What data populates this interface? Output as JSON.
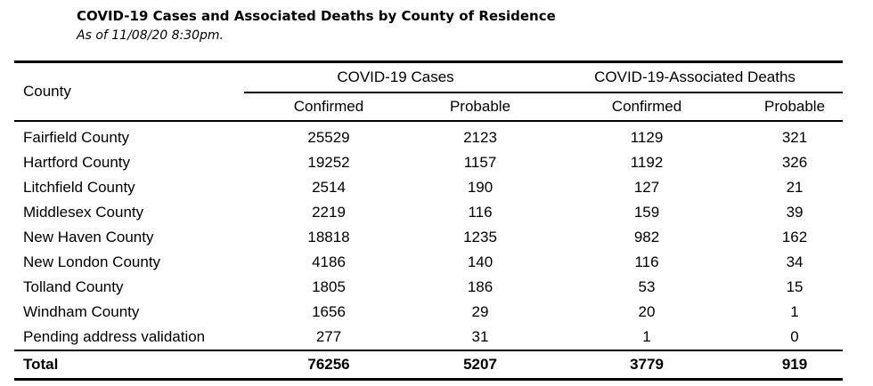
{
  "title": "COVID-19 Cases and Associated Deaths by County of Residence",
  "subtitle": "As of 11/08/20 8:30pm.",
  "table": {
    "county_header": "County",
    "groups": [
      "COVID-19 Cases",
      "COVID-19-Associated Deaths"
    ],
    "subheaders": [
      "Confirmed",
      "Probable",
      "Confirmed",
      "Probable"
    ],
    "rows": [
      {
        "county": "Fairfield County",
        "cases_confirmed": "25529",
        "cases_probable": "2123",
        "deaths_confirmed": "1129",
        "deaths_probable": "321"
      },
      {
        "county": "Hartford County",
        "cases_confirmed": "19252",
        "cases_probable": "1157",
        "deaths_confirmed": "1192",
        "deaths_probable": "326"
      },
      {
        "county": "Litchfield County",
        "cases_confirmed": "2514",
        "cases_probable": "190",
        "deaths_confirmed": "127",
        "deaths_probable": "21"
      },
      {
        "county": "Middlesex County",
        "cases_confirmed": "2219",
        "cases_probable": "116",
        "deaths_confirmed": "159",
        "deaths_probable": "39"
      },
      {
        "county": "New Haven County",
        "cases_confirmed": "18818",
        "cases_probable": "1235",
        "deaths_confirmed": "982",
        "deaths_probable": "162"
      },
      {
        "county": "New London County",
        "cases_confirmed": "4186",
        "cases_probable": "140",
        "deaths_confirmed": "116",
        "deaths_probable": "34"
      },
      {
        "county": "Tolland County",
        "cases_confirmed": "1805",
        "cases_probable": "186",
        "deaths_confirmed": "53",
        "deaths_probable": "15"
      },
      {
        "county": "Windham County",
        "cases_confirmed": "1656",
        "cases_probable": "29",
        "deaths_confirmed": "20",
        "deaths_probable": "1"
      },
      {
        "county": "Pending address validation",
        "cases_confirmed": "277",
        "cases_probable": "31",
        "deaths_confirmed": "1",
        "deaths_probable": "0"
      }
    ],
    "total": {
      "county": "Total",
      "cases_confirmed": "76256",
      "cases_probable": "5207",
      "deaths_confirmed": "3779",
      "deaths_probable": "919"
    }
  }
}
